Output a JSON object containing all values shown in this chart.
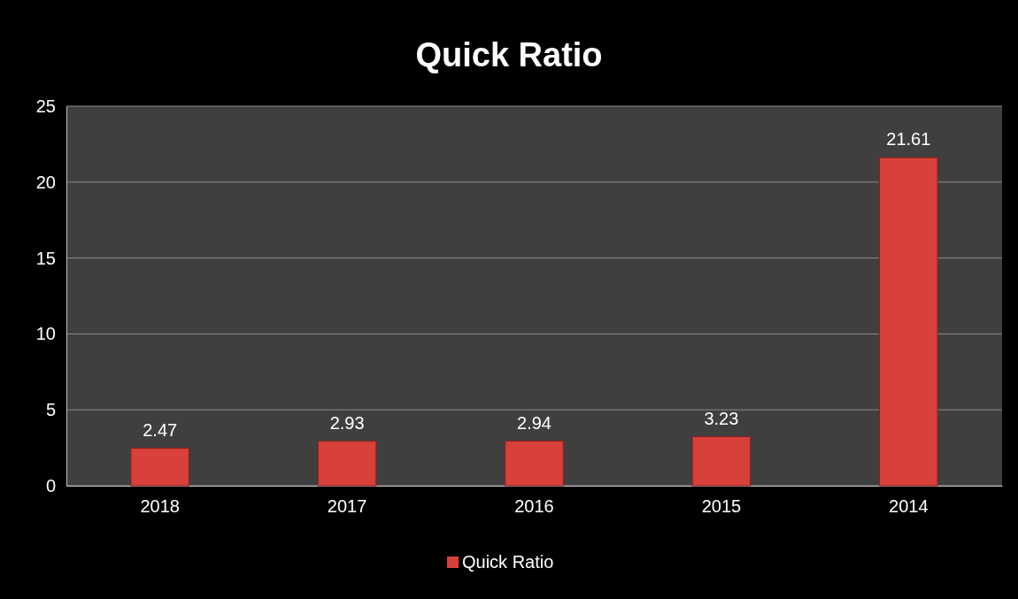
{
  "chart_data": {
    "type": "bar",
    "title": "Quick Ratio",
    "categories": [
      "2018",
      "2017",
      "2016",
      "2015",
      "2014"
    ],
    "series": [
      {
        "name": "Quick Ratio",
        "color": "#d8403c",
        "values": [
          2.47,
          2.93,
          2.94,
          3.23,
          21.61
        ]
      }
    ],
    "ylim": [
      0,
      25
    ],
    "yticks": [
      0,
      5,
      10,
      15,
      20,
      25
    ],
    "grid": "y",
    "legend": "bottom",
    "data_labels": true
  }
}
